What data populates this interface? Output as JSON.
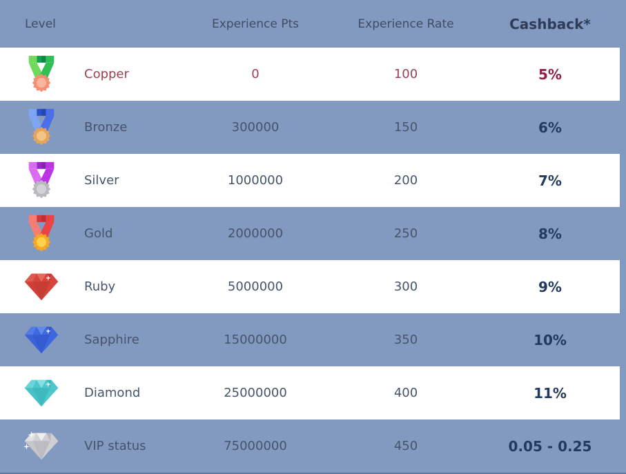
{
  "page": {
    "background": "#8299c0",
    "row_white": "#ffffff",
    "bottom_bar_color": "#66799f"
  },
  "table": {
    "headers": [
      {
        "label": "Level"
      },
      {
        "label": "Experience Pts"
      },
      {
        "label": "Experience Rate"
      },
      {
        "label": "Cashback*"
      }
    ],
    "text_colors": {
      "default": "#44546b",
      "highlight": "#9b4052",
      "cashback_default": "#223a5e",
      "cashback_highlight": "#8d1f43"
    },
    "rows": [
      {
        "level": "Copper",
        "experience_pts": "0",
        "experience_rate": "100",
        "cashback": "5%",
        "highlighted": true,
        "icon": {
          "type": "medal",
          "name": "copper-medal-icon",
          "strap_light": "#6ed95b",
          "strap_dark": "#2fbf55",
          "band_mid1": "#12a14b",
          "band_mid2": "#0b8a41",
          "seal": "#f58e72",
          "seal_inner": "#f9b59e"
        }
      },
      {
        "level": "Bronze",
        "experience_pts": "300000",
        "experience_rate": "150",
        "cashback": "6%",
        "highlighted": false,
        "icon": {
          "type": "medal",
          "name": "bronze-medal-icon",
          "strap_light": "#7ea4f4",
          "strap_dark": "#4a6fe8",
          "band_mid1": "#2d52c8",
          "band_mid2": "#2547b5",
          "seal": "#e9a357",
          "seal_inner": "#f2c488"
        }
      },
      {
        "level": "Silver",
        "experience_pts": "1000000",
        "experience_rate": "200",
        "cashback": "7%",
        "highlighted": false,
        "icon": {
          "type": "medal",
          "name": "silver-medal-icon",
          "strap_light": "#da6cf2",
          "strap_dark": "#bc35e4",
          "band_mid1": "#9c27c9",
          "band_mid2": "#8a20b5",
          "seal": "#b9b9bd",
          "seal_inner": "#d2d2d6"
        }
      },
      {
        "level": "Gold",
        "experience_pts": "2000000",
        "experience_rate": "250",
        "cashback": "8%",
        "highlighted": false,
        "icon": {
          "type": "medal",
          "name": "gold-medal-icon",
          "strap_light": "#f57d74",
          "strap_dark": "#ea4345",
          "band_mid1": "#d63539",
          "band_mid2": "#c12f35",
          "seal": "#f6a723",
          "seal_inner": "#fdd14a"
        }
      },
      {
        "level": "Ruby",
        "experience_pts": "5000000",
        "experience_rate": "300",
        "cashback": "9%",
        "highlighted": false,
        "icon": {
          "type": "gem",
          "name": "ruby-gem-icon",
          "base": "#d6453b",
          "light": "#e4695e",
          "dark": "#b5342c",
          "sparkles": 1
        }
      },
      {
        "level": "Sapphire",
        "experience_pts": "15000000",
        "experience_rate": "350",
        "cashback": "10%",
        "highlighted": false,
        "icon": {
          "type": "gem",
          "name": "sapphire-gem-icon",
          "base": "#3e68e0",
          "light": "#638ae9",
          "dark": "#2b4cc0",
          "sparkles": 1
        }
      },
      {
        "level": "Diamond",
        "experience_pts": "25000000",
        "experience_rate": "400",
        "cashback": "11%",
        "highlighted": false,
        "icon": {
          "type": "gem",
          "name": "diamond-gem-icon",
          "base": "#4cc8cc",
          "light": "#85dee0",
          "dark": "#2fa9ad",
          "sparkles": 1
        }
      },
      {
        "level": "VIP status",
        "experience_pts": "75000000",
        "experience_rate": "450",
        "cashback": "0.05 - 0.25",
        "highlighted": false,
        "icon": {
          "type": "gem",
          "name": "vip-diamond-icon",
          "base": "#cfcfd4",
          "light": "#efeff2",
          "dark": "#a4a4ac",
          "sparkles": 2
        }
      }
    ]
  }
}
